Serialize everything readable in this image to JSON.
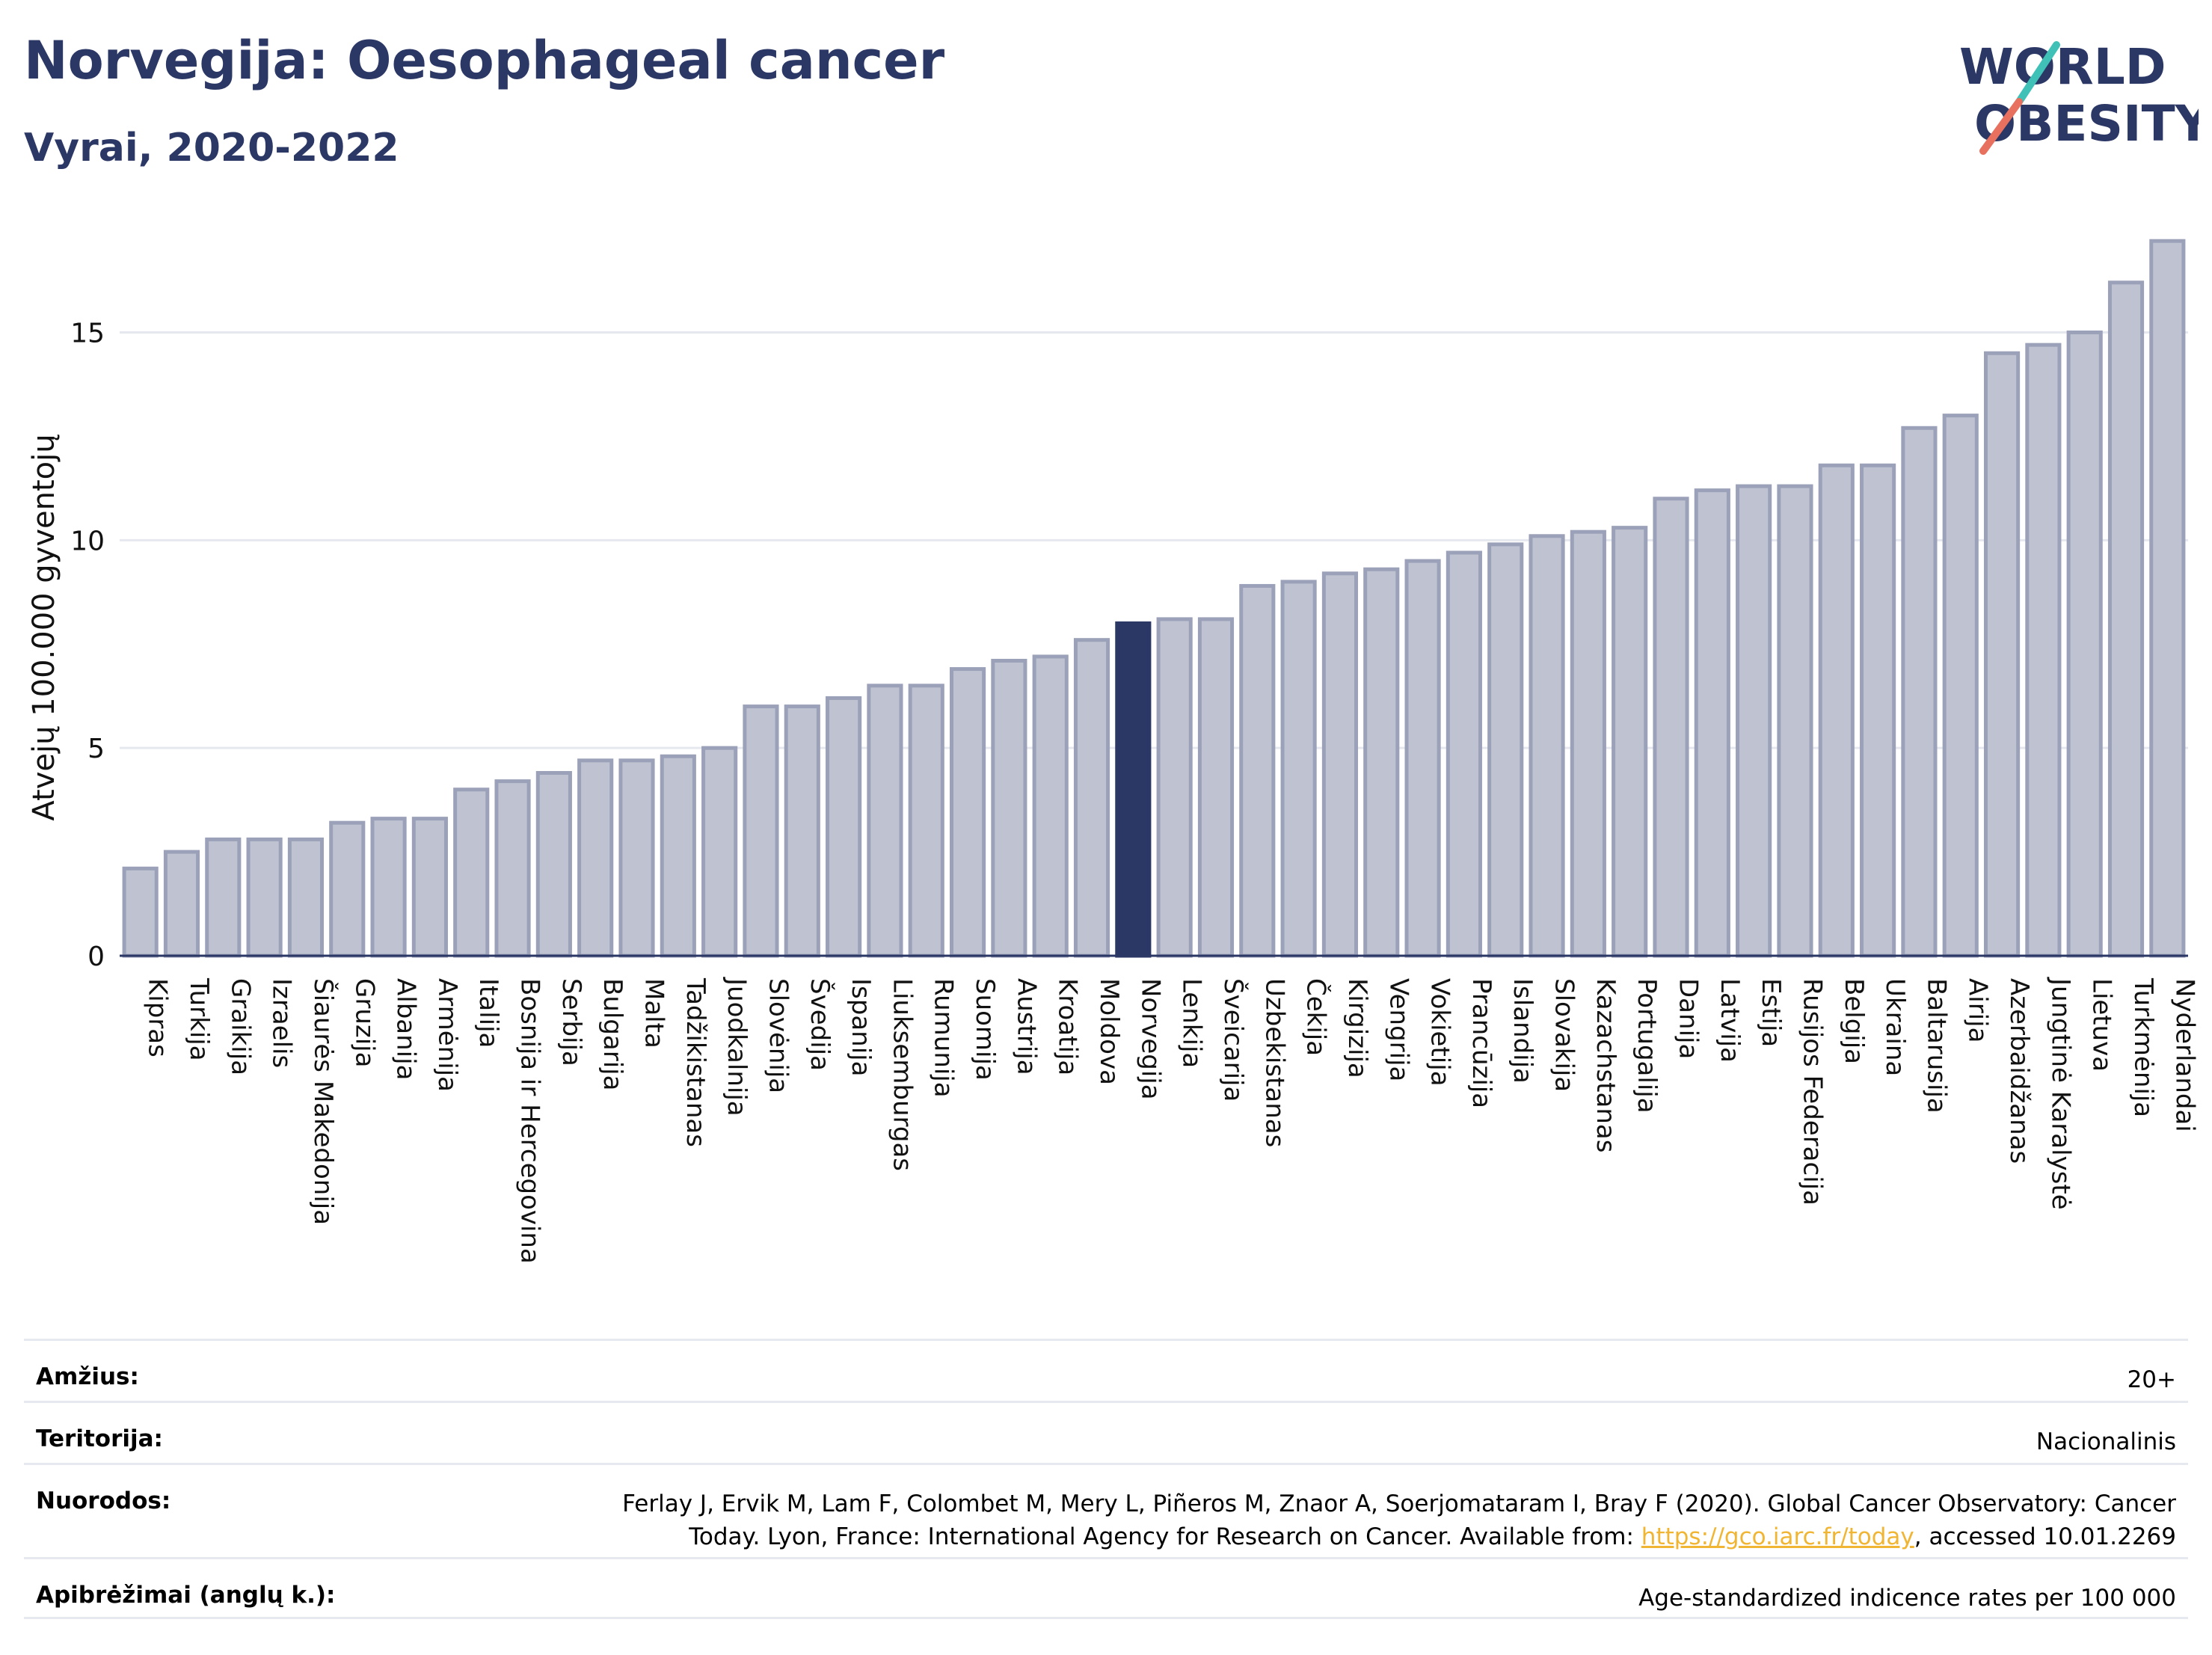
{
  "header": {
    "title": "Norvegija: Oesophageal cancer",
    "subtitle": "Vyrai, 2020-2022"
  },
  "logo": {
    "line1": "WORLD",
    "line2": "OBESITY",
    "accent_colors": [
      "#3fc1b8",
      "#e8705f"
    ],
    "text_color": "#2b3765"
  },
  "colors": {
    "highlight_bar": "#2b3765",
    "normal_bar_fill": "#bfc3d1",
    "normal_bar_stroke": "#9ba1b8",
    "link": "#f1b534"
  },
  "chart_data": {
    "type": "bar",
    "ylabel": "Atvejų 100.000 gyventojų",
    "xlabel": "",
    "ylim": [
      0,
      17.6
    ],
    "yticks": [
      0,
      5,
      10,
      15
    ],
    "grid": true,
    "highlight": "Norvegija",
    "categories": [
      "Kipras",
      "Turkija",
      "Graikija",
      "Izraelis",
      "Šiaurės Makedonija",
      "Gruzija",
      "Albanija",
      "Armėnija",
      "Italija",
      "Bosnija ir Hercegovina",
      "Serbija",
      "Bulgarija",
      "Malta",
      "Tadžikistanas",
      "Juodkalnija",
      "Slovėnija",
      "Švedija",
      "Ispanija",
      "Liuksemburgas",
      "Rumunija",
      "Suomija",
      "Austrija",
      "Kroatija",
      "Moldova",
      "Norvegija",
      "Lenkija",
      "Šveicarija",
      "Uzbekistanas",
      "Čekija",
      "Kirgizija",
      "Vengrija",
      "Vokietija",
      "Prancūzija",
      "Islandija",
      "Slovakija",
      "Kazachstanas",
      "Portugalija",
      "Danija",
      "Latvija",
      "Estija",
      "Rusijos Federacija",
      "Belgija",
      "Ukraina",
      "Baltarusija",
      "Airija",
      "Azerbaidžanas",
      "Jungtinė Karalystė",
      "Lietuva",
      "Turkmėnija",
      "Nyderlandai"
    ],
    "values": [
      2.1,
      2.5,
      2.8,
      2.8,
      2.8,
      3.2,
      3.3,
      3.3,
      4.0,
      4.2,
      4.4,
      4.7,
      4.7,
      4.8,
      5.0,
      6.0,
      6.0,
      6.2,
      6.5,
      6.5,
      6.9,
      7.1,
      7.2,
      7.6,
      8.0,
      8.1,
      8.1,
      8.9,
      9.0,
      9.2,
      9.3,
      9.5,
      9.7,
      9.9,
      10.1,
      10.2,
      10.3,
      11.0,
      11.2,
      11.3,
      11.3,
      11.8,
      11.8,
      12.7,
      13.0,
      14.5,
      14.7,
      15.0,
      16.2,
      17.2
    ]
  },
  "info": {
    "age_label": "Amžius:",
    "age_value": "20+",
    "territory_label": "Teritorija:",
    "territory_value": "Nacionalinis",
    "refs_label": "Nuorodos:",
    "refs_line1": "Ferlay J, Ervik M, Lam F, Colombet M, Mery L, Piñeros M, Znaor A, Soerjomataram I, Bray F (2020). Global Cancer Observatory: Cancer",
    "refs_line2_pre": "Today. Lyon, France: International Agency for Research on Cancer. Available from: ",
    "refs_link": "https://gco.iarc.fr/today",
    "refs_line2_post": ", accessed 10.01.2269",
    "defs_label": "Apibrėžimai (anglų k.):",
    "defs_value": "Age-standardized indicence rates per 100 000"
  }
}
